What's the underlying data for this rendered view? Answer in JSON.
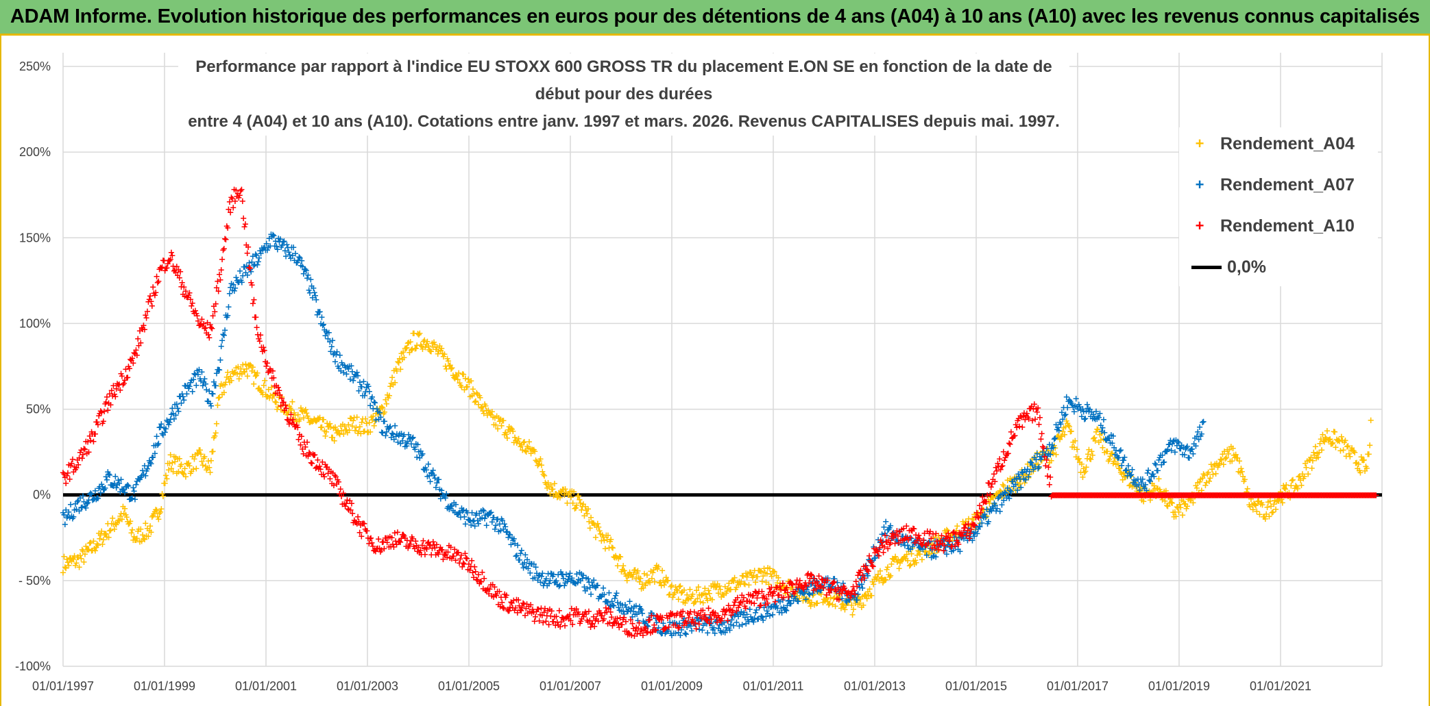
{
  "banner": {
    "title": "ADAM Informe. Evolution historique des performances en euros pour des détentions de 4 ans (A04) à 10 ans (A10) avec les revenus connus capitalisés"
  },
  "colors": {
    "banner_bg": "#7cc576",
    "frame": "#e6b800",
    "A04": "#ffc000",
    "A07": "#0070c0",
    "A10": "#ff0000",
    "zero_line": "#000000"
  },
  "chart_data": {
    "type": "scatter",
    "title_line1": "Performance par rapport à l'indice EU STOXX 600 GROSS TR  du placement E.ON SE en fonction de la date de début pour des durées",
    "title_line2": "entre 4 (A04) et 10 ans (A10). Cotations entre janv. 1997 et mars. 2026. Revenus CAPITALISES depuis mai. 1997.",
    "xlim": [
      "1997-01-01",
      "2023-01-01"
    ],
    "ylim": [
      -100,
      250
    ],
    "y_ticks": [
      "250%",
      "200%",
      "150%",
      "100%",
      "50%",
      "0%",
      "- 50%",
      "-100%"
    ],
    "x_ticks": [
      "01/01/1997",
      "01/01/1999",
      "01/01/2001",
      "01/01/2003",
      "01/01/2005",
      "01/01/2007",
      "01/01/2009",
      "01/01/2011",
      "01/01/2013",
      "01/01/2015",
      "01/01/2017",
      "01/01/2019",
      "01/01/2021"
    ],
    "grid": true,
    "legend_position": "top-right",
    "series": [
      {
        "name": "Rendement_A04",
        "marker": "+",
        "points": [
          [
            1997.0,
            -40
          ],
          [
            1997.3,
            -38
          ],
          [
            1997.6,
            -30
          ],
          [
            1997.9,
            -20
          ],
          [
            1998.2,
            -10
          ],
          [
            1998.4,
            -25
          ],
          [
            1998.7,
            -20
          ],
          [
            1998.9,
            -8
          ],
          [
            1999.1,
            20
          ],
          [
            1999.4,
            15
          ],
          [
            1999.7,
            22
          ],
          [
            1999.9,
            15
          ],
          [
            2000.1,
            60
          ],
          [
            2000.3,
            70
          ],
          [
            2000.6,
            75
          ],
          [
            2000.9,
            65
          ],
          [
            2001.2,
            55
          ],
          [
            2001.5,
            50
          ],
          [
            2001.8,
            45
          ],
          [
            2002.1,
            40
          ],
          [
            2002.4,
            35
          ],
          [
            2002.7,
            42
          ],
          [
            2003.0,
            40
          ],
          [
            2003.3,
            50
          ],
          [
            2003.6,
            75
          ],
          [
            2003.9,
            90
          ],
          [
            2004.2,
            90
          ],
          [
            2004.5,
            80
          ],
          [
            2004.8,
            70
          ],
          [
            2005.1,
            60
          ],
          [
            2005.4,
            45
          ],
          [
            2005.7,
            40
          ],
          [
            2006.0,
            30
          ],
          [
            2006.3,
            25
          ],
          [
            2006.6,
            5
          ],
          [
            2006.9,
            0
          ],
          [
            2007.2,
            -5
          ],
          [
            2007.5,
            -20
          ],
          [
            2007.8,
            -30
          ],
          [
            2008.1,
            -45
          ],
          [
            2008.4,
            -50
          ],
          [
            2008.7,
            -45
          ],
          [
            2009.0,
            -55
          ],
          [
            2009.3,
            -60
          ],
          [
            2009.6,
            -58
          ],
          [
            2009.9,
            -55
          ],
          [
            2010.2,
            -52
          ],
          [
            2010.5,
            -50
          ],
          [
            2010.8,
            -45
          ],
          [
            2011.1,
            -50
          ],
          [
            2011.4,
            -55
          ],
          [
            2011.7,
            -60
          ],
          [
            2012.0,
            -58
          ],
          [
            2012.3,
            -62
          ],
          [
            2012.6,
            -65
          ],
          [
            2012.9,
            -55
          ],
          [
            2013.2,
            -45
          ],
          [
            2013.5,
            -38
          ],
          [
            2013.8,
            -35
          ],
          [
            2014.1,
            -30
          ],
          [
            2014.4,
            -25
          ],
          [
            2014.7,
            -20
          ],
          [
            2015.0,
            -15
          ],
          [
            2015.3,
            -5
          ],
          [
            2015.6,
            5
          ],
          [
            2015.9,
            10
          ],
          [
            2016.2,
            20
          ],
          [
            2016.5,
            25
          ],
          [
            2016.8,
            40
          ],
          [
            2017.1,
            15
          ],
          [
            2017.4,
            35
          ],
          [
            2017.7,
            20
          ],
          [
            2018.0,
            10
          ],
          [
            2018.3,
            0
          ],
          [
            2018.6,
            5
          ],
          [
            2018.9,
            -10
          ],
          [
            2019.2,
            -5
          ],
          [
            2019.5,
            10
          ],
          [
            2019.8,
            20
          ],
          [
            2020.1,
            25
          ],
          [
            2020.4,
            -5
          ],
          [
            2020.7,
            -10
          ],
          [
            2021.0,
            0
          ],
          [
            2021.3,
            5
          ],
          [
            2021.6,
            20
          ],
          [
            2021.9,
            35
          ],
          [
            2022.2,
            30
          ],
          [
            2022.5,
            20
          ],
          [
            2022.7,
            15
          ],
          [
            2022.8,
            45
          ]
        ]
      },
      {
        "name": "Rendement_A07",
        "marker": "+",
        "points": [
          [
            1997.0,
            -15
          ],
          [
            1997.3,
            -5
          ],
          [
            1997.6,
            0
          ],
          [
            1997.9,
            10
          ],
          [
            1998.2,
            5
          ],
          [
            1998.4,
            0
          ],
          [
            1998.7,
            20
          ],
          [
            1998.9,
            35
          ],
          [
            1999.1,
            45
          ],
          [
            1999.4,
            60
          ],
          [
            1999.7,
            70
          ],
          [
            1999.9,
            55
          ],
          [
            2000.1,
            80
          ],
          [
            2000.3,
            120
          ],
          [
            2000.6,
            130
          ],
          [
            2000.9,
            140
          ],
          [
            2001.1,
            150
          ],
          [
            2001.3,
            145
          ],
          [
            2001.6,
            140
          ],
          [
            2001.9,
            120
          ],
          [
            2002.1,
            100
          ],
          [
            2002.4,
            80
          ],
          [
            2002.7,
            70
          ],
          [
            2003.0,
            60
          ],
          [
            2003.3,
            40
          ],
          [
            2003.6,
            35
          ],
          [
            2003.9,
            30
          ],
          [
            2004.2,
            15
          ],
          [
            2004.5,
            0
          ],
          [
            2004.8,
            -10
          ],
          [
            2005.1,
            -15
          ],
          [
            2005.4,
            -12
          ],
          [
            2005.7,
            -20
          ],
          [
            2006.0,
            -35
          ],
          [
            2006.3,
            -45
          ],
          [
            2006.6,
            -50
          ],
          [
            2006.9,
            -48
          ],
          [
            2007.2,
            -50
          ],
          [
            2007.5,
            -55
          ],
          [
            2007.8,
            -60
          ],
          [
            2008.1,
            -65
          ],
          [
            2008.4,
            -70
          ],
          [
            2008.7,
            -75
          ],
          [
            2009.0,
            -78
          ],
          [
            2009.3,
            -76
          ],
          [
            2009.6,
            -75
          ],
          [
            2009.9,
            -77
          ],
          [
            2010.2,
            -75
          ],
          [
            2010.5,
            -70
          ],
          [
            2010.8,
            -68
          ],
          [
            2011.1,
            -65
          ],
          [
            2011.4,
            -60
          ],
          [
            2011.7,
            -55
          ],
          [
            2012.0,
            -50
          ],
          [
            2012.3,
            -55
          ],
          [
            2012.6,
            -60
          ],
          [
            2012.9,
            -40
          ],
          [
            2013.2,
            -20
          ],
          [
            2013.5,
            -25
          ],
          [
            2013.8,
            -30
          ],
          [
            2014.1,
            -32
          ],
          [
            2014.4,
            -30
          ],
          [
            2014.7,
            -28
          ],
          [
            2015.0,
            -20
          ],
          [
            2015.3,
            -10
          ],
          [
            2015.6,
            0
          ],
          [
            2015.9,
            10
          ],
          [
            2016.2,
            20
          ],
          [
            2016.5,
            30
          ],
          [
            2016.8,
            55
          ],
          [
            2017.1,
            50
          ],
          [
            2017.4,
            45
          ],
          [
            2017.7,
            30
          ],
          [
            2018.0,
            15
          ],
          [
            2018.3,
            5
          ],
          [
            2018.6,
            20
          ],
          [
            2018.9,
            30
          ],
          [
            2019.2,
            25
          ],
          [
            2019.5,
            40
          ]
        ]
      },
      {
        "name": "Rendement_A10",
        "marker": "+",
        "points": [
          [
            1997.0,
            10
          ],
          [
            1997.3,
            20
          ],
          [
            1997.6,
            35
          ],
          [
            1997.9,
            55
          ],
          [
            1998.2,
            70
          ],
          [
            1998.4,
            80
          ],
          [
            1998.7,
            110
          ],
          [
            1998.9,
            130
          ],
          [
            1999.1,
            140
          ],
          [
            1999.4,
            120
          ],
          [
            1999.7,
            100
          ],
          [
            1999.9,
            95
          ],
          [
            2000.1,
            130
          ],
          [
            2000.3,
            170
          ],
          [
            2000.5,
            180
          ],
          [
            2000.8,
            100
          ],
          [
            2001.1,
            70
          ],
          [
            2001.4,
            50
          ],
          [
            2001.7,
            30
          ],
          [
            2002.0,
            20
          ],
          [
            2002.3,
            10
          ],
          [
            2002.6,
            -5
          ],
          [
            2002.9,
            -20
          ],
          [
            2003.2,
            -30
          ],
          [
            2003.5,
            -25
          ],
          [
            2003.8,
            -28
          ],
          [
            2004.1,
            -30
          ],
          [
            2004.4,
            -32
          ],
          [
            2004.7,
            -35
          ],
          [
            2005.0,
            -40
          ],
          [
            2005.3,
            -50
          ],
          [
            2005.6,
            -60
          ],
          [
            2005.9,
            -65
          ],
          [
            2006.2,
            -68
          ],
          [
            2006.5,
            -70
          ],
          [
            2006.8,
            -72
          ],
          [
            2007.1,
            -70
          ],
          [
            2007.4,
            -72
          ],
          [
            2007.7,
            -70
          ],
          [
            2008.0,
            -75
          ],
          [
            2008.3,
            -78
          ],
          [
            2008.6,
            -75
          ],
          [
            2008.9,
            -74
          ],
          [
            2009.2,
            -72
          ],
          [
            2009.5,
            -73
          ],
          [
            2009.8,
            -70
          ],
          [
            2010.1,
            -68
          ],
          [
            2010.4,
            -62
          ],
          [
            2010.7,
            -60
          ],
          [
            2011.0,
            -58
          ],
          [
            2011.3,
            -55
          ],
          [
            2011.6,
            -50
          ],
          [
            2011.9,
            -52
          ],
          [
            2012.2,
            -55
          ],
          [
            2012.5,
            -58
          ],
          [
            2012.8,
            -45
          ],
          [
            2013.1,
            -30
          ],
          [
            2013.4,
            -25
          ],
          [
            2013.7,
            -22
          ],
          [
            2014.0,
            -25
          ],
          [
            2014.3,
            -28
          ],
          [
            2014.6,
            -25
          ],
          [
            2014.9,
            -20
          ],
          [
            2015.2,
            0
          ],
          [
            2015.5,
            20
          ],
          [
            2015.8,
            40
          ],
          [
            2016.0,
            45
          ],
          [
            2016.2,
            50
          ],
          [
            2016.5,
            0
          ],
          [
            2017.0,
            0
          ],
          [
            2018.0,
            0
          ],
          [
            2019.0,
            0
          ],
          [
            2020.0,
            0
          ],
          [
            2021.0,
            0
          ],
          [
            2022.0,
            0
          ],
          [
            2022.9,
            0
          ]
        ]
      }
    ],
    "reference_line": {
      "name": "0,0%",
      "y": 0
    }
  }
}
